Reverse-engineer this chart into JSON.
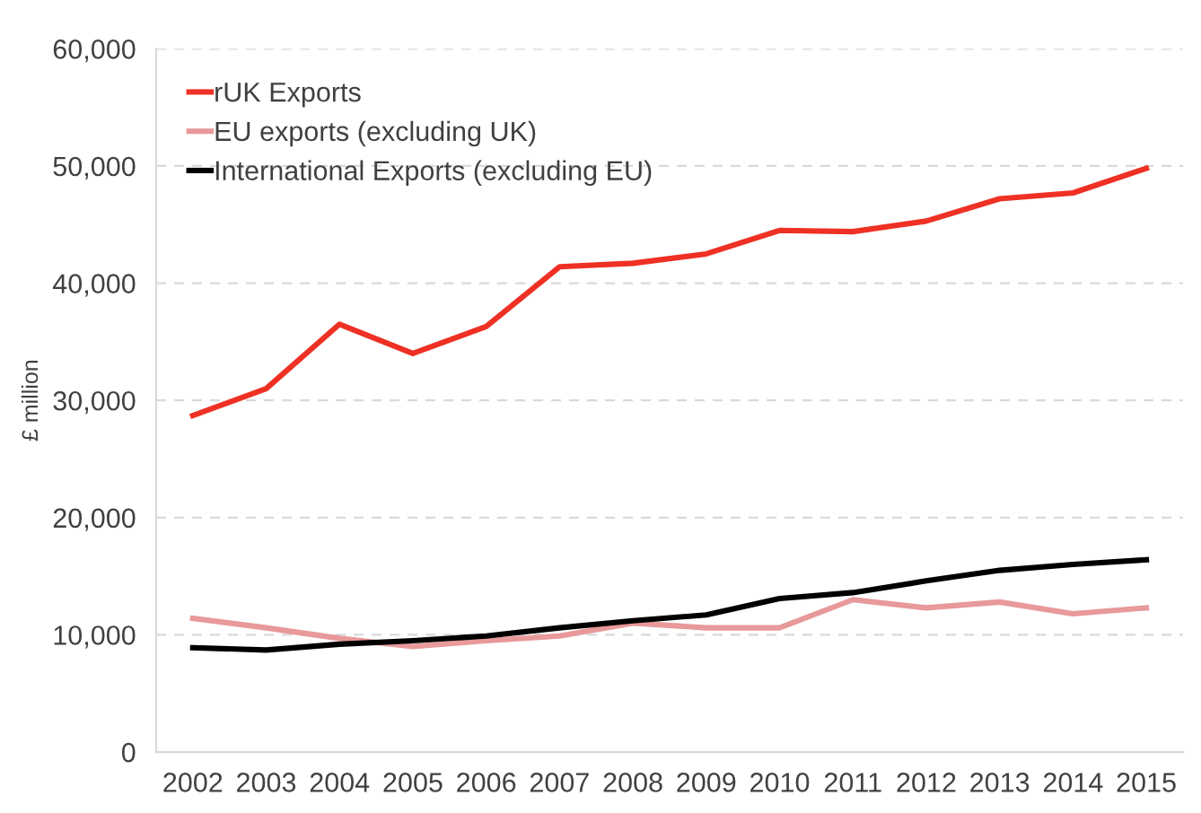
{
  "chart_data": {
    "type": "line",
    "ylabel": "£ million",
    "categories": [
      "2002",
      "2003",
      "2004",
      "2005",
      "2006",
      "2007",
      "2008",
      "2009",
      "2010",
      "2011",
      "2012",
      "2013",
      "2014",
      "2015"
    ],
    "series": [
      {
        "name": "rUK Exports",
        "color": "#ee3124",
        "values": [
          28700,
          31000,
          36500,
          34000,
          36300,
          41400,
          41700,
          42500,
          44500,
          44400,
          45300,
          47200,
          47700,
          49800
        ]
      },
      {
        "name": "EU exports (excluding UK)",
        "color": "#e8999a",
        "values": [
          11400,
          10600,
          9700,
          9000,
          9500,
          9900,
          11000,
          10600,
          10600,
          13000,
          12300,
          12800,
          11800,
          12300
        ]
      },
      {
        "name": "International Exports (excluding EU)",
        "color": "#000000",
        "values": [
          8900,
          8700,
          9200,
          9500,
          9900,
          10600,
          11200,
          11700,
          13100,
          13600,
          14600,
          15500,
          16000,
          16400
        ]
      }
    ],
    "ylim": [
      0,
      60000
    ],
    "yticks": [
      {
        "value": 0,
        "label": "0"
      },
      {
        "value": 10000,
        "label": "10,000"
      },
      {
        "value": 20000,
        "label": "20,000"
      },
      {
        "value": 30000,
        "label": "30,000"
      },
      {
        "value": 40000,
        "label": "40,000"
      },
      {
        "value": 50000,
        "label": "50,000"
      },
      {
        "value": 60000,
        "label": "60,000"
      }
    ],
    "grid": "y",
    "legend": "top left",
    "marker": "none",
    "line_style": "solid"
  }
}
